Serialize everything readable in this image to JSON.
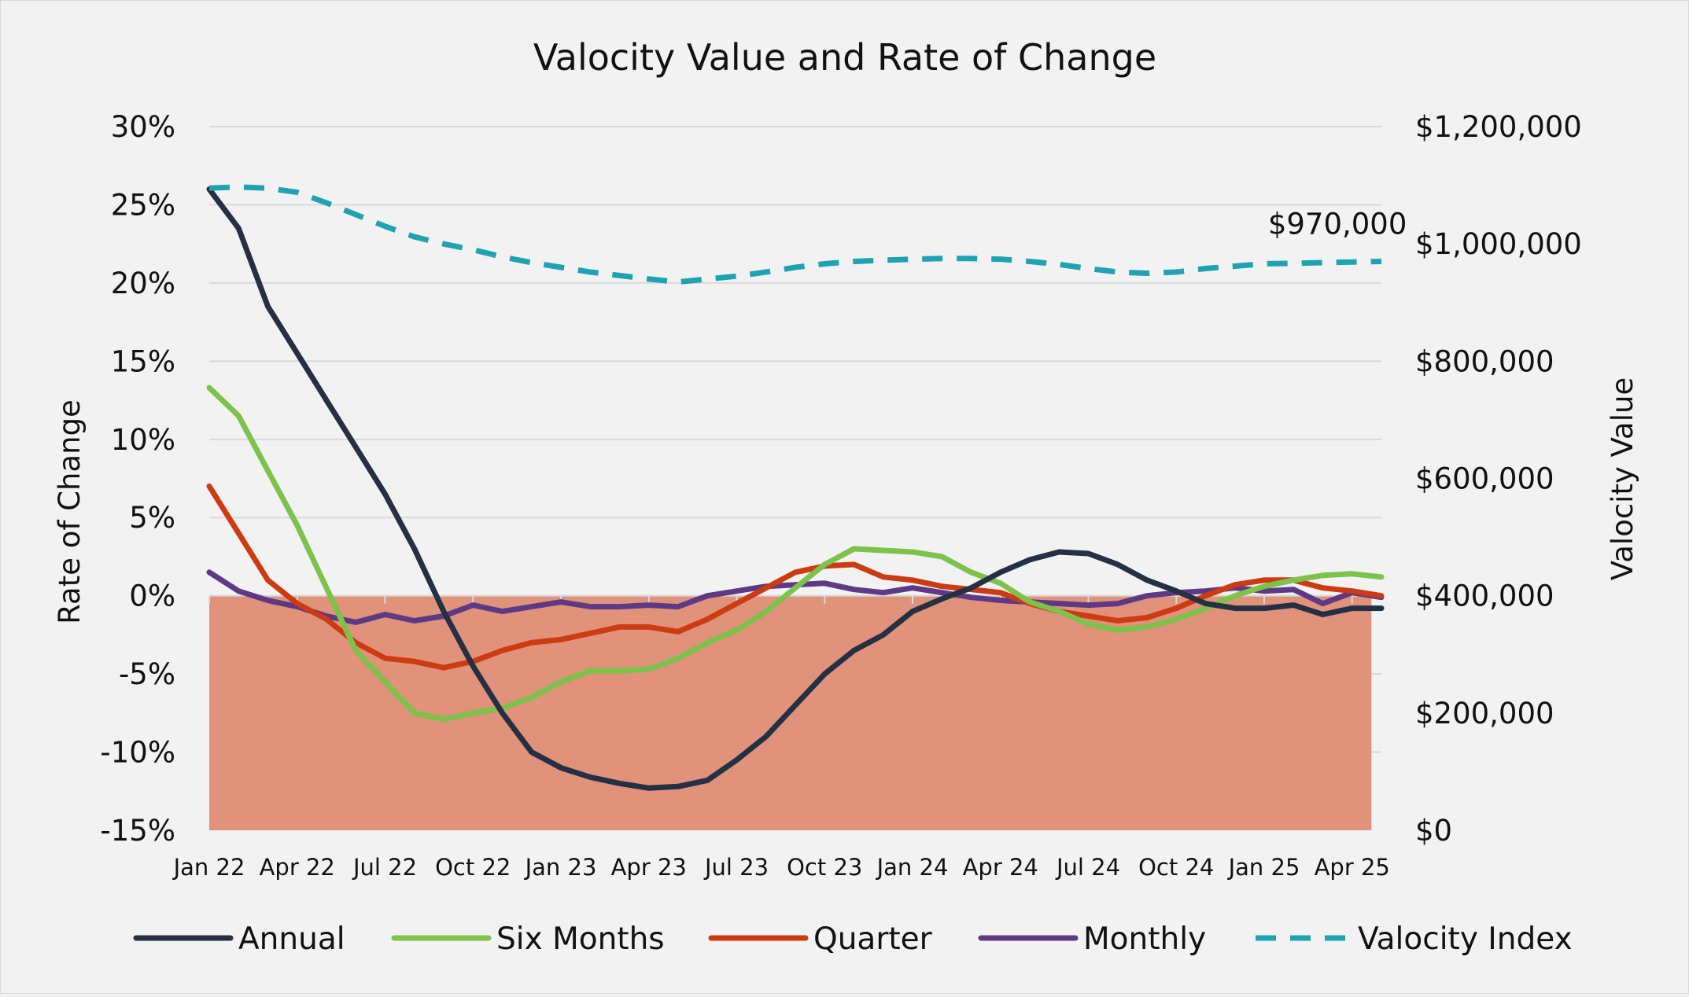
{
  "chart_data": {
    "type": "line",
    "title": "Valocity Value and Rate of Change",
    "ylabel_left": "Rate of Change",
    "ylabel_right": "Valocity Value",
    "ylim_left": [
      -15,
      30
    ],
    "ylim_right": [
      0,
      1200000
    ],
    "yticks_left": [
      "30%",
      "25%",
      "20%",
      "15%",
      "10%",
      "5%",
      "0%",
      "-5%",
      "-10%",
      "-15%"
    ],
    "yticks_right": [
      "$1,200,000",
      "$1,000,000",
      "$800,000",
      "$600,000",
      "$400,000",
      "$200,000",
      "$0"
    ],
    "x_labels": [
      "Jan 22",
      "Apr 22",
      "Jul 22",
      "Oct 22",
      "Jan 23",
      "Apr 23",
      "Jul 23",
      "Oct 23",
      "Jan 24",
      "Apr 24",
      "Jul 24",
      "Oct 24",
      "Jan 25",
      "Apr 25"
    ],
    "x_range_months": [
      0,
      40
    ],
    "gridlines": true,
    "shaded_region": {
      "from": -15,
      "to": 0,
      "color": "#e0937a"
    },
    "annotation": {
      "text": "$970,000",
      "x": 38.5,
      "series": "Valocity Index"
    },
    "series": [
      {
        "name": "Annual",
        "axis": "left",
        "color": "#253044",
        "style": "solid",
        "points": [
          [
            0,
            26
          ],
          [
            1,
            23.5
          ],
          [
            2,
            18.5
          ],
          [
            3,
            15.5
          ],
          [
            4,
            12.5
          ],
          [
            5,
            9.5
          ],
          [
            6,
            6.5
          ],
          [
            7,
            3
          ],
          [
            8,
            -1
          ],
          [
            9,
            -4.5
          ],
          [
            10,
            -7.5
          ],
          [
            11,
            -10
          ],
          [
            12,
            -11
          ],
          [
            13,
            -11.6
          ],
          [
            14,
            -12
          ],
          [
            15,
            -12.3
          ],
          [
            16,
            -12.2
          ],
          [
            17,
            -11.8
          ],
          [
            18,
            -10.5
          ],
          [
            19,
            -9
          ],
          [
            20,
            -7
          ],
          [
            21,
            -5
          ],
          [
            22,
            -3.5
          ],
          [
            23,
            -2.5
          ],
          [
            24,
            -1
          ],
          [
            25,
            -0.2
          ],
          [
            26,
            0.5
          ],
          [
            27,
            1.5
          ],
          [
            28,
            2.3
          ],
          [
            29,
            2.8
          ],
          [
            30,
            2.7
          ],
          [
            31,
            2
          ],
          [
            32,
            1
          ],
          [
            33,
            0.3
          ],
          [
            34,
            -0.5
          ],
          [
            35,
            -0.8
          ],
          [
            36,
            -0.8
          ],
          [
            37,
            -0.6
          ],
          [
            38,
            -1.2
          ],
          [
            39,
            -0.8
          ],
          [
            40,
            -0.8
          ]
        ]
      },
      {
        "name": "Six Months",
        "axis": "left",
        "color": "#7dc24b",
        "style": "solid",
        "points": [
          [
            0,
            13.3
          ],
          [
            1,
            11.5
          ],
          [
            2,
            8
          ],
          [
            3,
            4.5
          ],
          [
            4,
            0.5
          ],
          [
            5,
            -3.5
          ],
          [
            6,
            -5.5
          ],
          [
            7,
            -7.5
          ],
          [
            8,
            -7.9
          ],
          [
            9,
            -7.5
          ],
          [
            10,
            -7.2
          ],
          [
            11,
            -6.5
          ],
          [
            12,
            -5.5
          ],
          [
            13,
            -4.8
          ],
          [
            14,
            -4.8
          ],
          [
            15,
            -4.7
          ],
          [
            16,
            -4
          ],
          [
            17,
            -3
          ],
          [
            18,
            -2.2
          ],
          [
            19,
            -1
          ],
          [
            20,
            0.5
          ],
          [
            21,
            2
          ],
          [
            22,
            3
          ],
          [
            23,
            2.9
          ],
          [
            24,
            2.8
          ],
          [
            25,
            2.5
          ],
          [
            26,
            1.5
          ],
          [
            27,
            0.8
          ],
          [
            28,
            -0.4
          ],
          [
            29,
            -1
          ],
          [
            30,
            -1.8
          ],
          [
            31,
            -2.2
          ],
          [
            32,
            -2
          ],
          [
            33,
            -1.5
          ],
          [
            34,
            -0.8
          ],
          [
            35,
            0
          ],
          [
            36,
            0.6
          ],
          [
            37,
            1
          ],
          [
            38,
            1.3
          ],
          [
            39,
            1.4
          ],
          [
            40,
            1.2
          ]
        ]
      },
      {
        "name": "Quarter",
        "axis": "left",
        "color": "#cc3b12",
        "style": "solid",
        "points": [
          [
            0,
            7
          ],
          [
            1,
            4
          ],
          [
            2,
            1
          ],
          [
            3,
            -0.5
          ],
          [
            4,
            -1.5
          ],
          [
            5,
            -3
          ],
          [
            6,
            -4
          ],
          [
            7,
            -4.2
          ],
          [
            8,
            -4.6
          ],
          [
            9,
            -4.2
          ],
          [
            10,
            -3.5
          ],
          [
            11,
            -3
          ],
          [
            12,
            -2.8
          ],
          [
            13,
            -2.4
          ],
          [
            14,
            -2
          ],
          [
            15,
            -2
          ],
          [
            16,
            -2.3
          ],
          [
            17,
            -1.5
          ],
          [
            18,
            -0.5
          ],
          [
            19,
            0.5
          ],
          [
            20,
            1.5
          ],
          [
            21,
            1.9
          ],
          [
            22,
            2
          ],
          [
            23,
            1.2
          ],
          [
            24,
            1
          ],
          [
            25,
            0.6
          ],
          [
            26,
            0.4
          ],
          [
            27,
            0.2
          ],
          [
            28,
            -0.5
          ],
          [
            29,
            -1
          ],
          [
            30,
            -1.3
          ],
          [
            31,
            -1.6
          ],
          [
            32,
            -1.4
          ],
          [
            33,
            -0.8
          ],
          [
            34,
            0
          ],
          [
            35,
            0.7
          ],
          [
            36,
            1
          ],
          [
            37,
            1
          ],
          [
            38,
            0.5
          ],
          [
            39,
            0.3
          ],
          [
            40,
            0
          ]
        ]
      },
      {
        "name": "Monthly",
        "axis": "left",
        "color": "#5e3a86",
        "style": "solid",
        "points": [
          [
            0,
            1.5
          ],
          [
            1,
            0.3
          ],
          [
            2,
            -0.3
          ],
          [
            3,
            -0.7
          ],
          [
            4,
            -1.3
          ],
          [
            5,
            -1.7
          ],
          [
            6,
            -1.2
          ],
          [
            7,
            -1.6
          ],
          [
            8,
            -1.3
          ],
          [
            9,
            -0.6
          ],
          [
            10,
            -1
          ],
          [
            11,
            -0.7
          ],
          [
            12,
            -0.4
          ],
          [
            13,
            -0.7
          ],
          [
            14,
            -0.7
          ],
          [
            15,
            -0.6
          ],
          [
            16,
            -0.7
          ],
          [
            17,
            0
          ],
          [
            18,
            0.3
          ],
          [
            19,
            0.6
          ],
          [
            20,
            0.7
          ],
          [
            21,
            0.8
          ],
          [
            22,
            0.4
          ],
          [
            23,
            0.2
          ],
          [
            24,
            0.5
          ],
          [
            25,
            0.2
          ],
          [
            26,
            -0.1
          ],
          [
            27,
            -0.3
          ],
          [
            28,
            -0.4
          ],
          [
            29,
            -0.5
          ],
          [
            30,
            -0.6
          ],
          [
            31,
            -0.5
          ],
          [
            32,
            0
          ],
          [
            33,
            0.2
          ],
          [
            34,
            0.3
          ],
          [
            35,
            0.5
          ],
          [
            36,
            0.3
          ],
          [
            37,
            0.4
          ],
          [
            38,
            -0.5
          ],
          [
            39,
            0.2
          ],
          [
            40,
            -0.1
          ]
        ]
      },
      {
        "name": "Valocity Index",
        "axis": "right",
        "color": "#1fa2b1",
        "style": "dashed",
        "points": [
          [
            0,
            1095000
          ],
          [
            1,
            1097000
          ],
          [
            2,
            1095000
          ],
          [
            3,
            1088000
          ],
          [
            4,
            1070000
          ],
          [
            5,
            1050000
          ],
          [
            6,
            1030000
          ],
          [
            7,
            1012000
          ],
          [
            8,
            1000000
          ],
          [
            9,
            990000
          ],
          [
            10,
            978000
          ],
          [
            11,
            968000
          ],
          [
            12,
            960000
          ],
          [
            13,
            952000
          ],
          [
            14,
            946000
          ],
          [
            15,
            940000
          ],
          [
            16,
            935000
          ],
          [
            17,
            940000
          ],
          [
            18,
            945000
          ],
          [
            19,
            952000
          ],
          [
            20,
            960000
          ],
          [
            21,
            966000
          ],
          [
            22,
            970000
          ],
          [
            23,
            972000
          ],
          [
            24,
            974000
          ],
          [
            25,
            975000
          ],
          [
            26,
            975000
          ],
          [
            27,
            974000
          ],
          [
            28,
            970000
          ],
          [
            29,
            965000
          ],
          [
            30,
            958000
          ],
          [
            31,
            952000
          ],
          [
            32,
            950000
          ],
          [
            33,
            952000
          ],
          [
            34,
            958000
          ],
          [
            35,
            962000
          ],
          [
            36,
            966000
          ],
          [
            37,
            967000
          ],
          [
            38,
            968000
          ],
          [
            39,
            969000
          ],
          [
            40,
            970000
          ]
        ]
      }
    ]
  }
}
